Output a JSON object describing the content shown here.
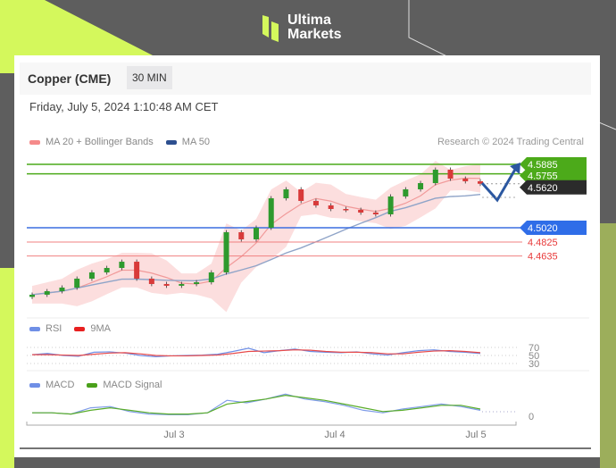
{
  "brand": {
    "line1": "Ultima",
    "line2": "Markets",
    "accent": "#d4f85c"
  },
  "header": {
    "instrument": "Copper (CME)",
    "timeframe": "30 MIN",
    "datetime": "Friday, July 5, 2024 1:10:48 AM CET",
    "credit": "Research © 2024 Trading Central"
  },
  "legend": {
    "ma20": "MA 20 + Bollinger Bands",
    "ma50": "MA 50",
    "rsi": "RSI",
    "rsi_ma": "9MA",
    "macd": "MACD",
    "macd_signal": "MACD Signal"
  },
  "chart_data": [
    {
      "type": "candlestick",
      "title": "Copper (CME) 30 MIN",
      "x_ticks": [
        "Jul 3",
        "Jul 4",
        "Jul 5"
      ],
      "closes": [
        4.4107,
        4.4155,
        4.4204,
        4.4326,
        4.4411,
        4.4472,
        4.4557,
        4.4326,
        4.4253,
        4.4229,
        4.4253,
        4.4277,
        4.4411,
        4.4959,
        4.4862,
        4.502,
        4.5422,
        4.5544,
        4.5386,
        4.5325,
        4.5276,
        4.5264,
        4.5227,
        4.5203,
        4.5447,
        4.5544,
        4.5629,
        4.5812,
        4.569,
        4.5654,
        4.562
      ],
      "levels": [
        {
          "value": "4.5885",
          "color": "#4caa1a",
          "label_bg": "#4caa1a"
        },
        {
          "value": "4.5755",
          "color": "#4caa1a",
          "label_bg": "#4caa1a"
        },
        {
          "value": "4.5620",
          "color": "#999999",
          "label_bg": "#2b2b2b"
        },
        {
          "value": "4.5020",
          "color": "#3b6fe0",
          "label_bg": "#2f6de8"
        },
        {
          "value": "4.4825",
          "color": "#f08080",
          "label_bg": ""
        },
        {
          "value": "4.4635",
          "color": "#f08080",
          "label_bg": ""
        }
      ],
      "colors": {
        "up": "#2e9a2e",
        "down": "#d83a3a",
        "bands": "#fbd3d3",
        "ma20": "#f19a9a",
        "ma50": "#8fa4c8",
        "arrow": "#2b57a0"
      }
    },
    {
      "type": "line",
      "name": "RSI panel",
      "y_ticks": [
        "70",
        "50",
        "30"
      ],
      "series": [
        {
          "name": "RSI",
          "color": "#6f8fe6",
          "values": [
            52,
            55,
            50,
            48,
            58,
            59,
            56,
            50,
            47,
            49,
            50,
            51,
            53,
            60,
            68,
            57,
            62,
            66,
            60,
            58,
            57,
            59,
            54,
            51,
            57,
            62,
            64,
            60,
            58,
            55
          ]
        },
        {
          "name": "9MA",
          "color": "#e84a4a",
          "values": [
            52,
            52,
            51,
            50,
            53,
            56,
            57,
            54,
            50,
            49,
            49,
            50,
            51,
            55,
            60,
            61,
            62,
            64,
            63,
            60,
            58,
            58,
            57,
            54,
            54,
            58,
            61,
            62,
            60,
            57
          ]
        }
      ]
    },
    {
      "type": "line",
      "name": "MACD panel",
      "y_ticks": [
        "0"
      ],
      "series": [
        {
          "name": "MACD",
          "color": "#7f9ce8",
          "values": [
            0.002,
            0.002,
            0.001,
            0.006,
            0.007,
            0.003,
            0.001,
            0.0005,
            0.0005,
            0.002,
            0.012,
            0.01,
            0.013,
            0.017,
            0.013,
            0.011,
            0.008,
            0.004,
            0.002,
            0.005,
            0.007,
            0.009,
            0.007,
            0.004
          ]
        },
        {
          "name": "MACD Signal",
          "color": "#5aad2a",
          "values": [
            0.002,
            0.002,
            0.001,
            0.004,
            0.006,
            0.004,
            0.002,
            0.001,
            0.001,
            0.002,
            0.009,
            0.011,
            0.013,
            0.016,
            0.014,
            0.012,
            0.009,
            0.006,
            0.003,
            0.004,
            0.006,
            0.008,
            0.008,
            0.005
          ]
        }
      ]
    }
  ]
}
